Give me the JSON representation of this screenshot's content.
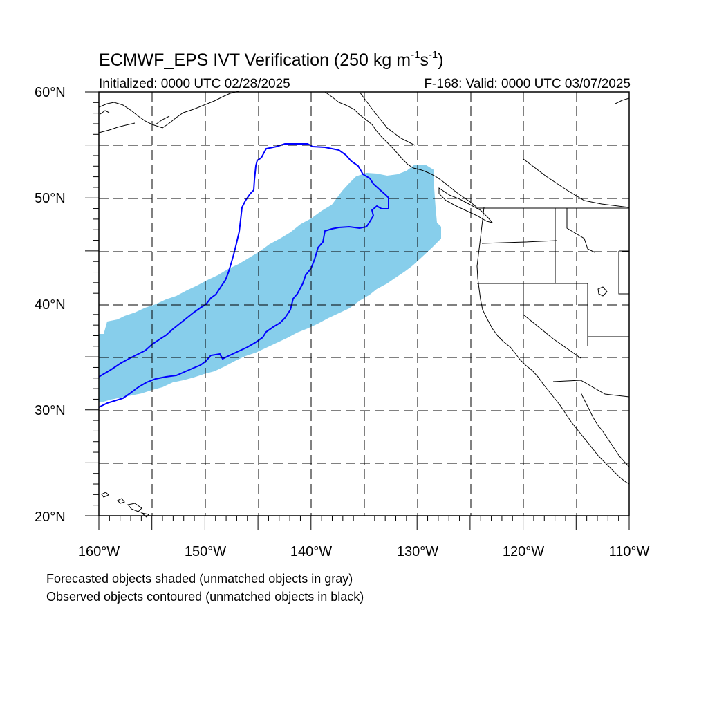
{
  "title": {
    "main": "ECMWF_EPS IVT Verification (250 kg m",
    "exp1": "-1",
    "mid": "s",
    "exp2": "-1",
    "end": ")"
  },
  "initialized": "Initialized: 0000 UTC 02/28/2025",
  "valid": "F-168: Valid: 0000 UTC 03/07/2025",
  "lat_labels": [
    "60°N",
    "50°N",
    "40°N",
    "30°N",
    "20°N"
  ],
  "lon_labels": [
    "160°W",
    "150°W",
    "140°W",
    "130°W",
    "120°W",
    "110°W"
  ],
  "notes": [
    "Forecasted objects shaded (unmatched objects in gray)",
    "Observed objects contoured (unmatched objects in black)"
  ],
  "colors": {
    "forecast_fill": "#87ceeb",
    "observed_contour": "#0000ff",
    "coastline": "#000000"
  },
  "map_extent": {
    "lon_min": -160,
    "lon_max": -110,
    "lat_min": 20,
    "lat_max": 60
  }
}
